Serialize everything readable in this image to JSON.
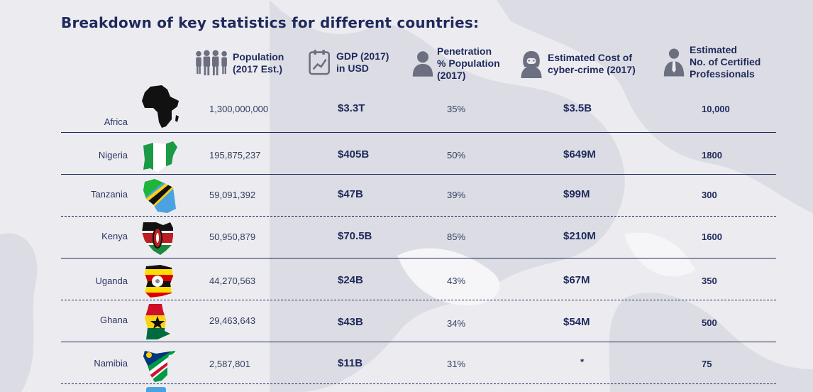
{
  "title": "Breakdown of key statistics for different countries:",
  "headers": {
    "population": "Population\n(2017 Est.)",
    "gdp": "GDP (2017)\nin USD",
    "penetration": "Penetration\n% Population\n(2017)",
    "cost": "Estimated Cost of\ncyber-crime (2017)",
    "professionals": "Estimated\nNo. of Certified\nProfessionals"
  },
  "header_icons": [
    "people-icon",
    "chart-document-icon",
    "person-silhouette-icon",
    "hacker-icon",
    "professional-icon"
  ],
  "rows": [
    {
      "country": "Africa",
      "population": "1,300,000,000",
      "gdp": "$3.3T",
      "penetration": "35%",
      "cost": "$3.5B",
      "professionals": "10,000",
      "flag_icon": "africa-map-icon"
    },
    {
      "country": "Nigeria",
      "population": "195,875,237",
      "gdp": "$405B",
      "penetration": "50%",
      "cost": "$649M",
      "professionals": "1800",
      "flag_icon": "nigeria-flag-map-icon"
    },
    {
      "country": "Tanzania",
      "population": "59,091,392",
      "gdp": "$47B",
      "penetration": "39%",
      "cost": "$99M",
      "professionals": "300",
      "flag_icon": "tanzania-flag-map-icon"
    },
    {
      "country": "Kenya",
      "population": "50,950,879",
      "gdp": "$70.5B",
      "penetration": "85%",
      "cost": "$210M",
      "professionals": "1600",
      "flag_icon": "kenya-flag-map-icon"
    },
    {
      "country": "Uganda",
      "population": "44,270,563",
      "gdp": "$24B",
      "penetration": "43%",
      "cost": "$67M",
      "professionals": "350",
      "flag_icon": "uganda-flag-map-icon"
    },
    {
      "country": "Ghana",
      "population": "29,463,643",
      "gdp": "$43B",
      "penetration": "34%",
      "cost": "$54M",
      "professionals": "500",
      "flag_icon": "ghana-flag-map-icon"
    },
    {
      "country": "Namibia",
      "population": "2,587,801",
      "gdp": "$11B",
      "penetration": "31%",
      "cost": "*",
      "professionals": "75",
      "flag_icon": "namibia-flag-map-icon"
    }
  ],
  "colors": {
    "navy": "#1f2a5c",
    "background": "#ececf0"
  }
}
